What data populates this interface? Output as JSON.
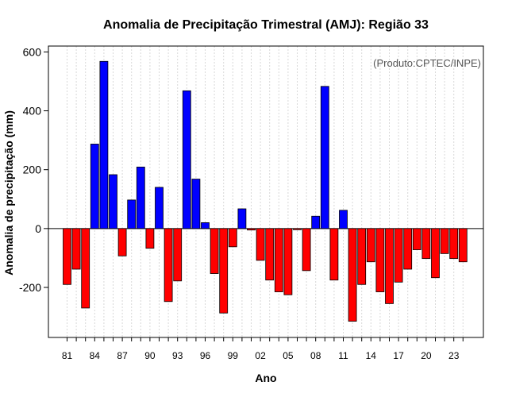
{
  "chart_data": {
    "type": "bar",
    "title": "Anomalia de Precipitação Trimestral (AMJ): Região 33",
    "xlabel": "Ano",
    "ylabel": "Anomalia de precipitação (mm)",
    "annotation": "(Produto:CPTEC/INPE)",
    "ylim": [
      -370,
      620
    ],
    "yticks": [
      -200,
      0,
      200,
      400,
      600
    ],
    "xtick_labels": [
      "81",
      "84",
      "87",
      "90",
      "93",
      "96",
      "99",
      "02",
      "05",
      "08",
      "11",
      "14",
      "17",
      "20",
      "23"
    ],
    "xtick_years": [
      1981,
      1984,
      1987,
      1990,
      1993,
      1996,
      1999,
      2002,
      2005,
      2008,
      2011,
      2014,
      2017,
      2020,
      2023
    ],
    "categories": [
      "1981",
      "1982",
      "1983",
      "1984",
      "1985",
      "1986",
      "1987",
      "1988",
      "1989",
      "1990",
      "1991",
      "1992",
      "1993",
      "1994",
      "1995",
      "1996",
      "1997",
      "1998",
      "1999",
      "2000",
      "2001",
      "2002",
      "2003",
      "2004",
      "2005",
      "2006",
      "2007",
      "2008",
      "2009",
      "2010",
      "2011",
      "2012",
      "2013",
      "2014",
      "2015",
      "2016",
      "2017",
      "2018",
      "2019",
      "2020",
      "2021",
      "2022",
      "2023",
      "2024"
    ],
    "values": [
      -190,
      -138,
      -270,
      287,
      568,
      183,
      -93,
      97,
      209,
      -67,
      140,
      -248,
      -178,
      468,
      168,
      20,
      -153,
      -287,
      -62,
      67,
      -5,
      -108,
      -175,
      -215,
      -225,
      -4,
      -143,
      42,
      483,
      -175,
      62,
      -315,
      -190,
      -113,
      -215,
      -255,
      -182,
      -138,
      -72,
      -102,
      -167,
      -85,
      -102,
      -113
    ],
    "grid": true,
    "colors": {
      "positive": "#0000ff",
      "negative": "#ff0000",
      "grid": "#d8d8d8",
      "zero_line": "#000000"
    }
  }
}
